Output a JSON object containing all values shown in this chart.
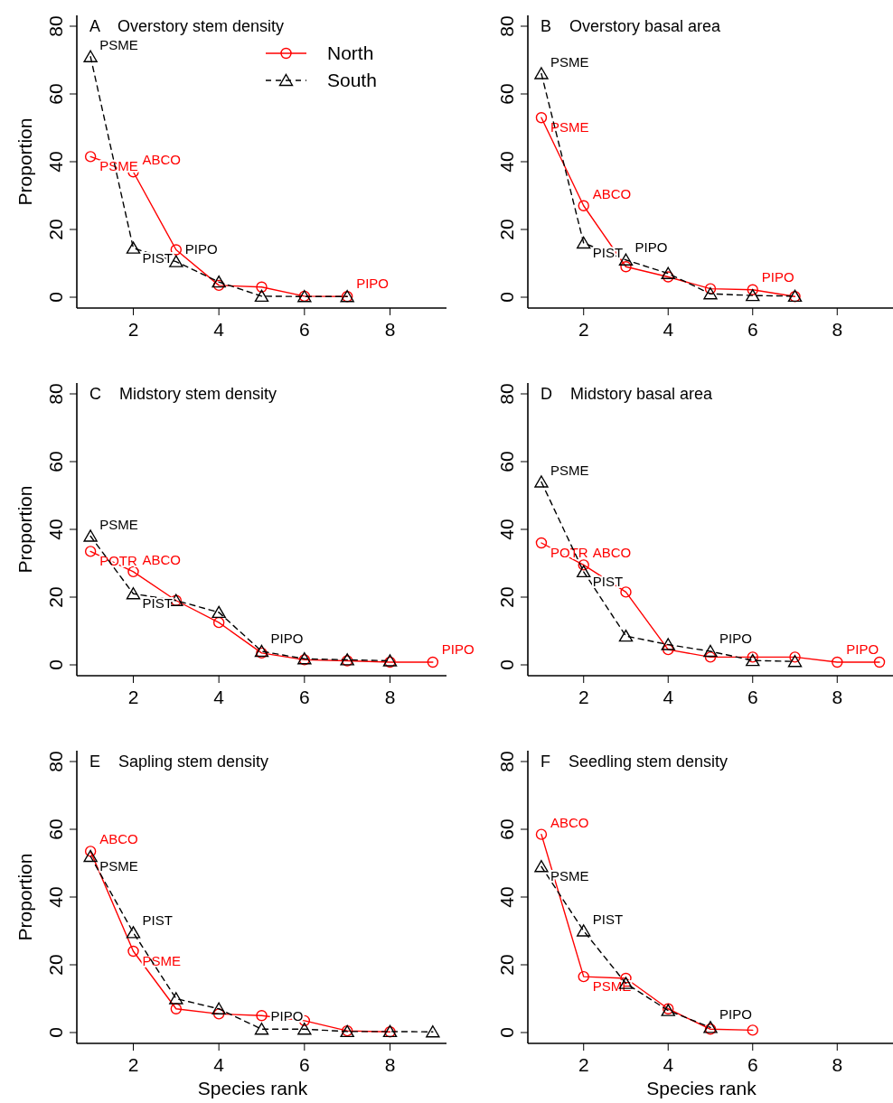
{
  "chart_data": [
    {
      "type": "line",
      "title": "A    Overstory stem density",
      "ylabel": "Proportion",
      "xlim": [
        0.68,
        9.32
      ],
      "ylim": [
        -3.2,
        83.2
      ],
      "xticks": [
        2,
        4,
        6,
        8
      ],
      "yticks": [
        0,
        20,
        40,
        60,
        80
      ],
      "grid": false,
      "legend": "top right",
      "series": [
        {
          "name": "North",
          "color": "#ff0000",
          "marker": "circle",
          "line_style": "solid",
          "x": [
            1,
            2,
            3,
            4,
            5,
            6,
            7
          ],
          "values": [
            41.5,
            37,
            14,
            3.5,
            3,
            0.3,
            0.2
          ],
          "value_labels": [
            "PSME",
            "ABCO",
            null,
            null,
            null,
            null,
            "PIPO"
          ]
        },
        {
          "name": "South",
          "color": "#000000",
          "marker": "triangle",
          "line_style": "dashed",
          "x": [
            1,
            2,
            3,
            4,
            5,
            6,
            7
          ],
          "values": [
            71,
            14.5,
            10.5,
            4.5,
            0.3,
            0.2,
            0.2
          ],
          "value_labels": [
            "PSME",
            "PIST",
            "PIPO",
            null,
            null,
            null,
            null
          ]
        }
      ]
    },
    {
      "type": "line",
      "title": "B    Overstory basal area",
      "xlim": [
        0.68,
        9.32
      ],
      "ylim": [
        -3.2,
        83.2
      ],
      "xticks": [
        2,
        4,
        6,
        8
      ],
      "yticks": [
        0,
        20,
        40,
        60,
        80
      ],
      "grid": false,
      "legend": false,
      "series": [
        {
          "color": "#ff0000",
          "marker": "circle",
          "line_style": "solid",
          "x": [
            1,
            2,
            3,
            4,
            5,
            6,
            7
          ],
          "values": [
            53,
            27,
            9,
            6,
            2.5,
            2.2,
            0.2
          ],
          "value_labels": [
            "PSME",
            "ABCO",
            null,
            null,
            null,
            "PIPO",
            null
          ]
        },
        {
          "color": "#000000",
          "marker": "triangle",
          "line_style": "dashed",
          "x": [
            1,
            2,
            3,
            4,
            5,
            6,
            7
          ],
          "values": [
            66,
            16,
            11,
            7,
            1,
            0.5,
            0.3
          ],
          "value_labels": [
            "PSME",
            "PIST",
            "PIPO",
            null,
            null,
            null,
            null
          ]
        }
      ]
    },
    {
      "type": "line",
      "title": "C    Midstory stem density",
      "ylabel": "Proportion",
      "xlim": [
        0.68,
        9.32
      ],
      "ylim": [
        -3.2,
        83.2
      ],
      "xticks": [
        2,
        4,
        6,
        8
      ],
      "yticks": [
        0,
        20,
        40,
        60,
        80
      ],
      "grid": false,
      "legend": false,
      "series": [
        {
          "color": "#ff0000",
          "marker": "circle",
          "line_style": "solid",
          "x": [
            1,
            2,
            3,
            4,
            5,
            6,
            7,
            8,
            9
          ],
          "values": [
            33.5,
            27.5,
            19,
            12.5,
            3.5,
            1.5,
            1.2,
            0.8,
            0.8
          ],
          "value_labels": [
            "POTR",
            "ABCO",
            null,
            null,
            null,
            null,
            null,
            null,
            "PIPO"
          ]
        },
        {
          "color": "#000000",
          "marker": "triangle",
          "line_style": "dashed",
          "x": [
            1,
            2,
            3,
            4,
            5,
            6,
            7,
            8
          ],
          "values": [
            38,
            21,
            19,
            15.5,
            4,
            1.8,
            1.5,
            1.2
          ],
          "value_labels": [
            "PSME",
            "PIST",
            null,
            null,
            "PIPO",
            null,
            null,
            null
          ]
        }
      ]
    },
    {
      "type": "line",
      "title": "D    Midstory basal area",
      "xlim": [
        0.68,
        9.32
      ],
      "ylim": [
        -3.2,
        83.2
      ],
      "xticks": [
        2,
        4,
        6,
        8
      ],
      "yticks": [
        0,
        20,
        40,
        60,
        80
      ],
      "grid": false,
      "legend": false,
      "series": [
        {
          "color": "#ff0000",
          "marker": "circle",
          "line_style": "solid",
          "x": [
            1,
            2,
            3,
            4,
            5,
            6,
            7,
            8,
            9
          ],
          "values": [
            36,
            29.5,
            21.5,
            4.5,
            2.3,
            2.3,
            2.3,
            0.8,
            0.8
          ],
          "value_labels": [
            "POTR",
            "ABCO",
            null,
            null,
            null,
            null,
            null,
            "PIPO",
            null
          ]
        },
        {
          "color": "#000000",
          "marker": "triangle",
          "line_style": "dashed",
          "x": [
            1,
            2,
            3,
            4,
            5,
            6,
            7
          ],
          "values": [
            54,
            27.5,
            8.5,
            6,
            4,
            1.3,
            1
          ],
          "value_labels": [
            "PSME",
            "PIST",
            null,
            null,
            "PIPO",
            null,
            null
          ]
        }
      ]
    },
    {
      "type": "line",
      "title": "E    Sapling stem density",
      "xlabel": "Species rank",
      "ylabel": "Proportion",
      "xlim": [
        0.68,
        9.32
      ],
      "ylim": [
        -3.2,
        83.2
      ],
      "xticks": [
        2,
        4,
        6,
        8
      ],
      "yticks": [
        0,
        20,
        40,
        60,
        80
      ],
      "grid": false,
      "legend": false,
      "series": [
        {
          "color": "#ff0000",
          "marker": "circle",
          "line_style": "solid",
          "x": [
            1,
            2,
            3,
            4,
            5,
            6,
            7,
            8
          ],
          "values": [
            53.5,
            24,
            7,
            5.5,
            5,
            3.5,
            0.5,
            0.2
          ],
          "value_labels": [
            "ABCO",
            "PSME",
            null,
            null,
            null,
            null,
            null,
            null
          ]
        },
        {
          "color": "#000000",
          "marker": "triangle",
          "line_style": "dashed",
          "x": [
            1,
            2,
            3,
            4,
            5,
            6,
            7,
            8,
            9
          ],
          "values": [
            52,
            29.5,
            10,
            7,
            1,
            1,
            0.3,
            0.3,
            0.2
          ],
          "value_labels": [
            "PSME",
            "PIST",
            null,
            null,
            "PIPO",
            null,
            null,
            null,
            null
          ]
        }
      ]
    },
    {
      "type": "line",
      "title": "F    Seedling stem density",
      "xlabel": "Species rank",
      "xlim": [
        0.68,
        9.32
      ],
      "ylim": [
        -3.2,
        83.2
      ],
      "xticks": [
        2,
        4,
        6,
        8
      ],
      "yticks": [
        0,
        20,
        40,
        60,
        80
      ],
      "grid": false,
      "legend": false,
      "series": [
        {
          "color": "#ff0000",
          "marker": "circle",
          "line_style": "solid",
          "x": [
            1,
            2,
            3,
            4,
            5,
            6
          ],
          "values": [
            58.5,
            16.5,
            16,
            7,
            1,
            0.7
          ],
          "value_labels": [
            "ABCO",
            "PSME",
            null,
            null,
            null,
            null
          ]
        },
        {
          "color": "#000000",
          "marker": "triangle",
          "line_style": "dashed",
          "x": [
            1,
            2,
            3,
            4,
            5
          ],
          "values": [
            49,
            30,
            14.5,
            6.5,
            1.5
          ],
          "value_labels": [
            "PSME",
            "PIST",
            null,
            null,
            "PIPO"
          ]
        }
      ]
    }
  ]
}
